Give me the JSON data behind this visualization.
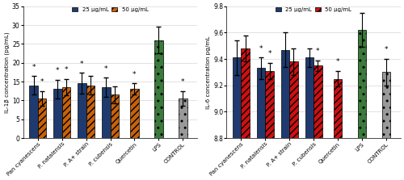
{
  "left": {
    "categories": [
      "Pan cyanescens",
      "P. natalensis",
      "P. A+ strain",
      "P. cubensis",
      "Quercetin",
      "LPS",
      "CONTROL"
    ],
    "bar25": [
      14.0,
      13.0,
      14.5,
      13.5,
      null,
      26.0,
      null
    ],
    "bar50": [
      10.5,
      13.5,
      14.0,
      11.5,
      13.0,
      null,
      10.5
    ],
    "err25": [
      2.5,
      2.5,
      2.8,
      2.5,
      null,
      3.5,
      null
    ],
    "err50": [
      2.0,
      2.2,
      2.5,
      2.2,
      1.5,
      null,
      2.0
    ],
    "stars25": [
      true,
      true,
      true,
      true,
      false,
      false,
      false
    ],
    "stars50": [
      true,
      true,
      false,
      false,
      true,
      false,
      true
    ],
    "ylabel": "IL-1β concentration (pg/mL)",
    "ylim": [
      0,
      35
    ],
    "yticks": [
      0,
      5,
      10,
      15,
      20,
      25,
      30,
      35
    ],
    "color25": "#1e3a6e",
    "color50": "#c8620a",
    "color_lps": "#3a7a3a",
    "color_control": "#999999"
  },
  "right": {
    "categories": [
      "Pan cyanescens",
      "P. natalensis",
      "P. A+ strain",
      "P. cubensis",
      "Quercetin",
      "LPS",
      "CONTROL"
    ],
    "bar25": [
      9.41,
      9.33,
      9.47,
      9.41,
      null,
      9.62,
      null
    ],
    "bar50": [
      9.48,
      9.31,
      9.38,
      9.35,
      9.25,
      null,
      9.3
    ],
    "err25": [
      0.13,
      0.08,
      0.13,
      0.07,
      null,
      0.13,
      null
    ],
    "err50": [
      0.1,
      0.06,
      0.1,
      0.04,
      0.06,
      null,
      0.1
    ],
    "stars25": [
      false,
      true,
      false,
      false,
      false,
      false,
      false
    ],
    "stars50": [
      false,
      true,
      false,
      true,
      true,
      false,
      true
    ],
    "ylabel": "IL-6 concentration pg/mL",
    "ylim": [
      8.8,
      9.8
    ],
    "yticks": [
      8.8,
      9.0,
      9.2,
      9.4,
      9.6,
      9.8
    ],
    "color25": "#1e3a6e",
    "color50": "#cc1111",
    "color_lps": "#3a7a3a",
    "color_control": "#999999"
  },
  "legend_label25": "25 µg/mL",
  "legend_label50": "50 µg/mL"
}
